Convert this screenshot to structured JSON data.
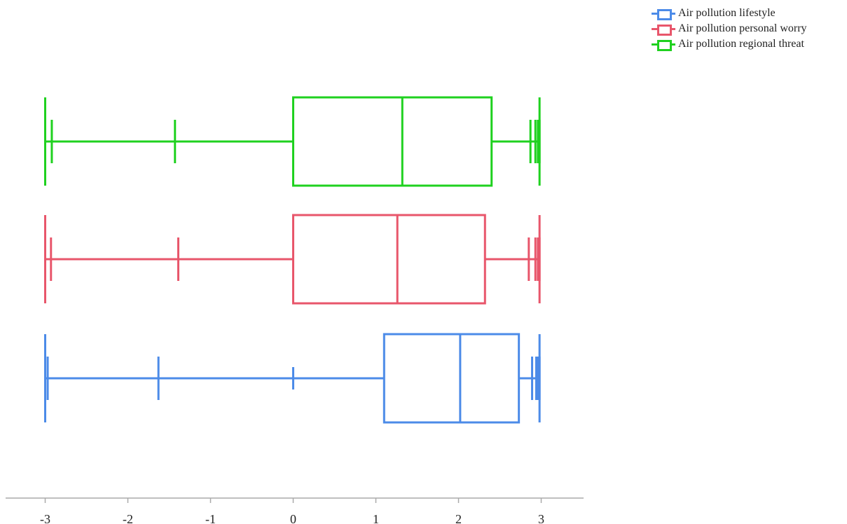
{
  "chart_data": {
    "type": "boxplot",
    "orientation": "horizontal",
    "xlim": [
      -3.5,
      3.5
    ],
    "xticks": [
      "-3",
      "-2",
      "-1",
      "0",
      "1",
      "2",
      "3"
    ],
    "legend_position": "top-right",
    "grid": false,
    "series": [
      {
        "name": "Air pollution regional threat",
        "color": "#1fd11f",
        "whisker_low": -3.0,
        "q1": 0.0,
        "median": 1.32,
        "q3": 2.4,
        "whisker_high": 2.98,
        "outliers": [
          -2.92,
          -1.43,
          2.87,
          2.93,
          2.96,
          2.98
        ]
      },
      {
        "name": "Air pollution personal worry",
        "color": "#e8566b",
        "whisker_low": -3.0,
        "q1": 0.0,
        "median": 1.26,
        "q3": 2.32,
        "whisker_high": 2.98,
        "outliers": [
          -2.93,
          -1.39,
          2.85,
          2.93,
          2.96,
          2.98
        ]
      },
      {
        "name": "Air pollution lifestyle",
        "color": "#4c8be8",
        "whisker_low": -3.0,
        "q1": 1.1,
        "median": 2.02,
        "q3": 2.73,
        "whisker_high": 2.98,
        "outliers": [
          -2.97,
          -1.63,
          0.0,
          2.89,
          2.94,
          2.96,
          2.98
        ]
      }
    ]
  },
  "legend": {
    "items": [
      {
        "label": "Air pollution lifestyle",
        "color": "#4c8be8"
      },
      {
        "label": "Air pollution personal worry",
        "color": "#e8566b"
      },
      {
        "label": "Air pollution regional threat",
        "color": "#1fd11f"
      }
    ]
  }
}
